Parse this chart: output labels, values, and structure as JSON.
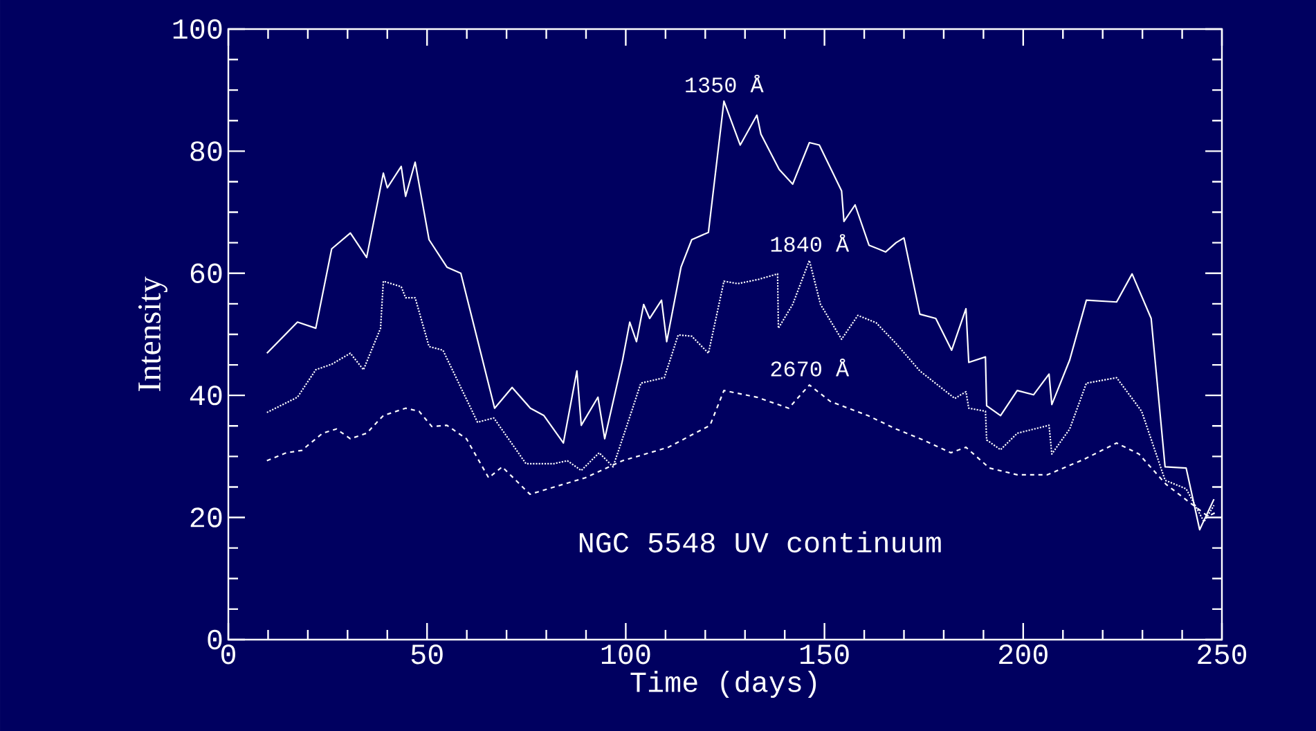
{
  "chart_data": {
    "type": "line",
    "xlabel": "Time (days)",
    "ylabel": "Intensity",
    "xlim": [
      0,
      250
    ],
    "ylim": [
      0,
      100
    ],
    "xticks": [
      0,
      50,
      100,
      150,
      200,
      250
    ],
    "yticks": [
      0,
      20,
      40,
      60,
      80,
      100
    ],
    "grid": false,
    "marker": "none",
    "annotations": [
      "NGC 5548 UV continuum"
    ],
    "series": [
      {
        "name": "1350 Å",
        "color": "#ffffff",
        "line_style": "solid",
        "x": [
          9.7,
          17.4,
          22,
          26,
          30.7,
          34.8,
          39,
          40,
          43.5,
          44.6,
          47,
          50.5,
          55,
          58.5,
          67,
          71.4,
          76,
          79.4,
          84.3,
          87.7,
          88.8,
          93,
          94.7,
          99.2,
          101,
          102.7,
          104.5,
          106,
          109,
          110.3,
          113.9,
          116.6,
          120.8,
          124.7,
          128.8,
          133,
          134,
          138.6,
          142,
          146.2,
          148.7,
          154.3,
          154.9,
          157.7,
          161.2,
          165.4,
          168,
          170,
          174,
          178,
          182,
          185.6,
          186.3,
          190.5,
          190.8,
          194.3,
          198.5,
          202.6,
          206.5,
          207.2,
          211.7,
          215.9,
          223.5,
          227.4,
          232.2,
          235.7,
          241,
          244.4,
          248
        ],
        "values": [
          46.9,
          52,
          51,
          64,
          66.6,
          62.6,
          76.4,
          74,
          77.5,
          72.6,
          78.2,
          65.5,
          61,
          60,
          37.9,
          41.3,
          37.9,
          36.7,
          32.2,
          44,
          35.1,
          39.7,
          32.9,
          45.8,
          52,
          48.8,
          54.9,
          52.6,
          55.6,
          48.8,
          61,
          65.5,
          66.7,
          88.2,
          81,
          85.9,
          82.8,
          77,
          74.6,
          81.4,
          81,
          73.5,
          68.5,
          71.2,
          64.6,
          63.5,
          65,
          65.8,
          53.3,
          52.6,
          47.4,
          54.2,
          45.4,
          46.3,
          38.3,
          36.7,
          40.8,
          40.1,
          43.5,
          38.5,
          45.8,
          55.6,
          55.3,
          59.9,
          52.6,
          28.3,
          28.1,
          18,
          23
        ]
      },
      {
        "name": "1840 Å",
        "color": "#ffffff",
        "line_style": "dotted",
        "x": [
          9.7,
          17.4,
          22,
          26,
          30.7,
          34,
          38.3,
          39,
          43.5,
          44.6,
          47,
          50.5,
          54,
          62.7,
          66.8,
          74.9,
          81.8,
          85.3,
          88.8,
          93.3,
          96.8,
          100.3,
          103.8,
          109.7,
          113.2,
          116.6,
          120.8,
          124.7,
          128.2,
          133.4,
          138.2,
          138.4,
          142,
          146.2,
          149,
          154.3,
          158.4,
          163,
          168,
          174,
          182.8,
          185.6,
          186.3,
          190.5,
          190.8,
          194.3,
          198.5,
          206.5,
          207.2,
          211.7,
          215.9,
          223.5,
          229.8,
          235.7,
          241,
          245.5,
          248
        ],
        "values": [
          37.2,
          39.7,
          44.2,
          45.1,
          46.9,
          44.2,
          51,
          58.7,
          57.8,
          56,
          56,
          48,
          47.4,
          35.6,
          36.3,
          28.8,
          28.8,
          29.3,
          27.7,
          30.6,
          28.3,
          35.1,
          42,
          42.9,
          49.9,
          49.7,
          46.9,
          58.7,
          58.3,
          59,
          59.9,
          51,
          54.9,
          62.1,
          54.9,
          49.2,
          53.1,
          51.9,
          48.5,
          44,
          39.5,
          40.6,
          37.9,
          37.4,
          32.7,
          31.1,
          33.8,
          35.1,
          30.4,
          34.5,
          42,
          42.9,
          37.4,
          26.1,
          24.7,
          19.3,
          22
        ]
      },
      {
        "name": "2670 Å",
        "color": "#ffffff",
        "line_style": "dashed",
        "x": [
          9.7,
          14.6,
          18.5,
          23.7,
          27.2,
          30.7,
          34.8,
          39,
          44.6,
          48,
          51.2,
          55,
          59.9,
          65.5,
          68.9,
          75.9,
          82,
          89.8,
          99.2,
          110.7,
          121.2,
          124.7,
          133,
          141,
          146.2,
          151.5,
          160.9,
          168,
          174.8,
          181.8,
          185.6,
          191.5,
          198.5,
          206.1,
          215.2,
          223.5,
          229.1,
          236,
          242,
          246.5,
          249
        ],
        "values": [
          29.3,
          30.6,
          31,
          33.8,
          34.5,
          32.9,
          33.8,
          36.7,
          37.9,
          37.4,
          34.9,
          35.1,
          32.9,
          26.5,
          28.3,
          23.8,
          25,
          26.5,
          29.3,
          31.5,
          35.1,
          40.8,
          39.7,
          37.9,
          41.7,
          39,
          36.7,
          34.5,
          32.7,
          30.6,
          31.5,
          28.1,
          27,
          27,
          29.5,
          32.2,
          30.4,
          25.4,
          22.4,
          20.2,
          21
        ]
      }
    ]
  }
}
